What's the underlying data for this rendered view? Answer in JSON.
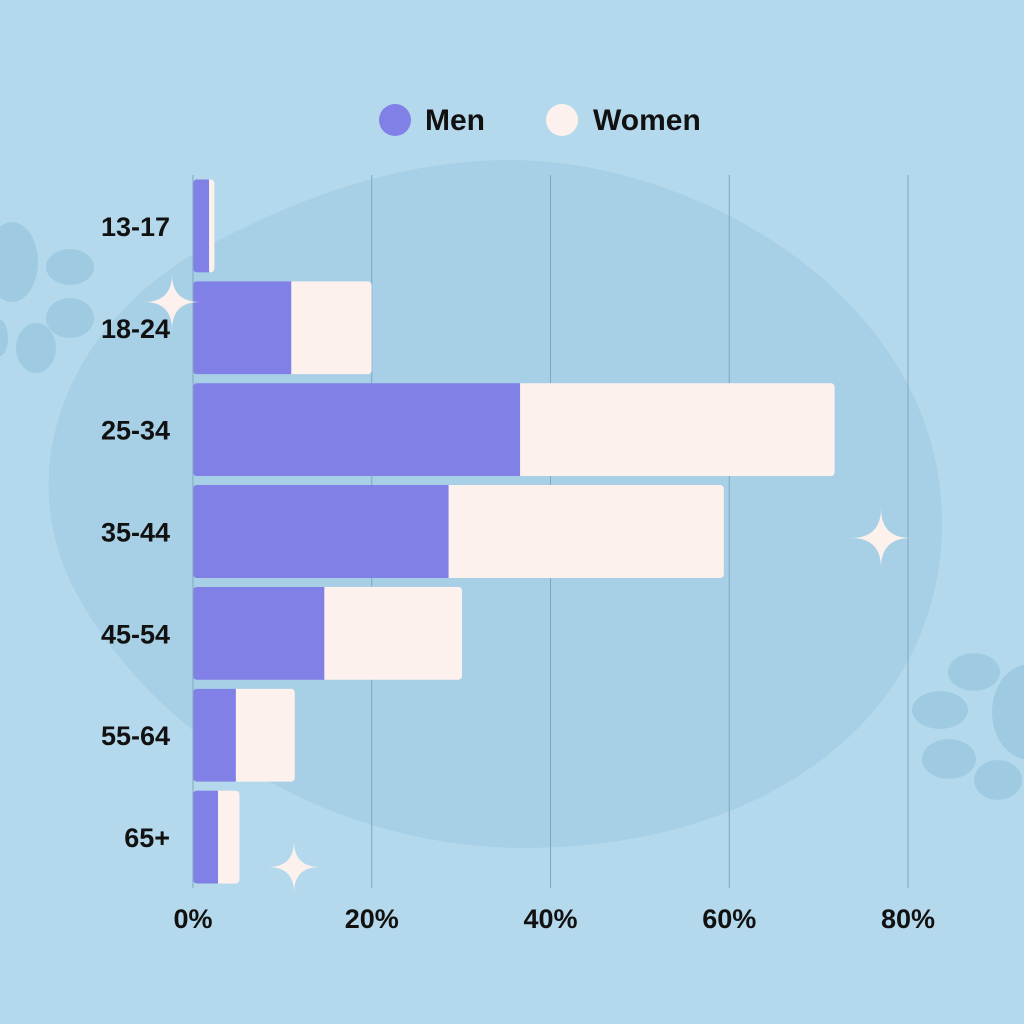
{
  "colors": {
    "background": "#b5d9ec",
    "blob": "#a7d0e6",
    "paw": "#9ecbe2",
    "men": "#8080e6",
    "women": "#fdf1ee",
    "gridline": "#7fa6bf",
    "text": "#111111",
    "sparkle": "#fdf1ee"
  },
  "chart_data": {
    "type": "bar",
    "orientation": "horizontal",
    "stacked": true,
    "categories": [
      "13-17",
      "18-24",
      "25-34",
      "35-44",
      "45-54",
      "55-64",
      "65+"
    ],
    "series": [
      {
        "name": "Men",
        "color": "#8080e6",
        "values": [
          1.8,
          11.0,
          36.6,
          28.6,
          14.7,
          4.8,
          2.8
        ]
      },
      {
        "name": "Women",
        "color": "#fdf1ee",
        "values": [
          0.6,
          9.0,
          35.2,
          30.8,
          15.4,
          6.6,
          2.4
        ]
      }
    ],
    "xlim": [
      0,
      80
    ],
    "xticks": [
      "0%",
      "20%",
      "40%",
      "60%",
      "80%"
    ],
    "grid": true,
    "legend_position": "top-center",
    "title": "",
    "xlabel": "",
    "ylabel": ""
  }
}
